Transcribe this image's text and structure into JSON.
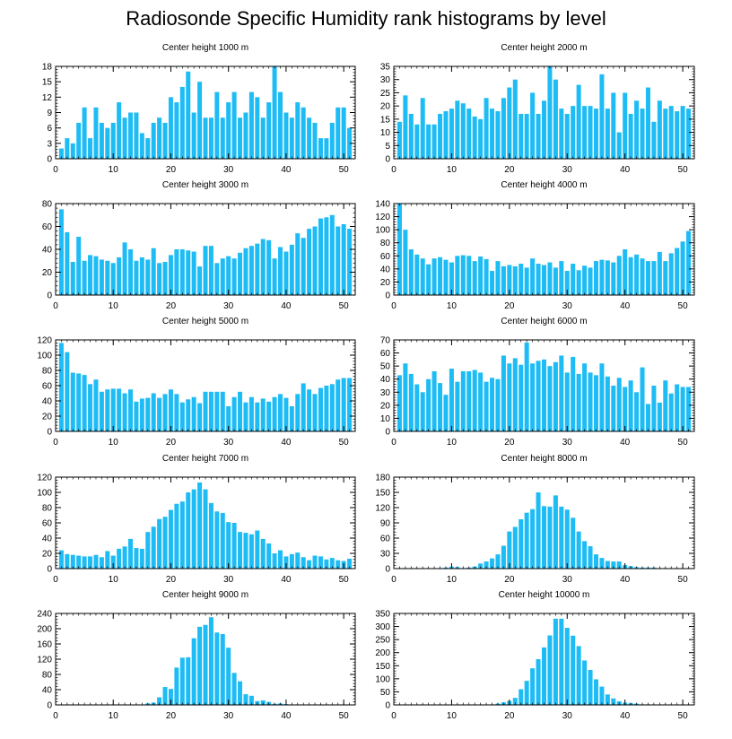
{
  "figure": {
    "title": "Radiosonde Specific Humidity rank histograms by level",
    "bar_color": "#1ebcf5",
    "axis_color": "#000000"
  },
  "chart_data": [
    {
      "type": "bar",
      "title": "Center height 1000 m",
      "xlim": [
        0,
        52
      ],
      "ylim": [
        0,
        18
      ],
      "xticks": [
        0,
        10,
        20,
        30,
        40,
        50
      ],
      "yticks": [
        0,
        3,
        6,
        9,
        12,
        15,
        18
      ],
      "values": [
        2,
        4,
        3,
        7,
        10,
        4,
        10,
        7,
        6,
        7,
        11,
        8,
        9,
        9,
        5,
        4,
        7,
        8,
        7,
        12,
        11,
        14,
        17,
        9,
        15,
        8,
        8,
        13,
        8,
        11,
        13,
        8,
        9,
        13,
        12,
        8,
        11,
        18,
        13,
        9,
        8,
        11,
        10,
        8,
        7,
        4,
        4,
        7,
        10,
        10,
        6
      ]
    },
    {
      "type": "bar",
      "title": "Center height 2000 m",
      "xlim": [
        0,
        52
      ],
      "ylim": [
        0,
        35
      ],
      "xticks": [
        0,
        10,
        20,
        30,
        40,
        50
      ],
      "yticks": [
        0,
        5,
        10,
        15,
        20,
        25,
        30,
        35
      ],
      "values": [
        14,
        24,
        17,
        13,
        23,
        13,
        13,
        17,
        18,
        19,
        22,
        21,
        19,
        16,
        15,
        23,
        19,
        18,
        23,
        27,
        30,
        17,
        17,
        25,
        17,
        22,
        35,
        30,
        19,
        17,
        20,
        28,
        20,
        20,
        19,
        32,
        19,
        25,
        10,
        25,
        17,
        22,
        19,
        27,
        14,
        22,
        19,
        20,
        18,
        20,
        19
      ]
    },
    {
      "type": "bar",
      "title": "Center height 3000 m",
      "xlim": [
        0,
        52
      ],
      "ylim": [
        0,
        80
      ],
      "xticks": [
        0,
        10,
        20,
        30,
        40,
        50
      ],
      "yticks": [
        0,
        20,
        40,
        60,
        80
      ],
      "values": [
        75,
        55,
        29,
        51,
        30,
        35,
        34,
        31,
        30,
        28,
        33,
        46,
        40,
        30,
        33,
        31,
        41,
        28,
        29,
        35,
        40,
        40,
        39,
        38,
        25,
        43,
        43,
        28,
        32,
        34,
        32,
        37,
        41,
        43,
        45,
        49,
        48,
        32,
        42,
        38,
        44,
        54,
        50,
        58,
        60,
        67,
        68,
        70,
        60,
        62,
        58
      ]
    },
    {
      "type": "bar",
      "title": "Center height 4000 m",
      "xlim": [
        0,
        52
      ],
      "ylim": [
        0,
        140
      ],
      "xticks": [
        0,
        10,
        20,
        30,
        40,
        50
      ],
      "yticks": [
        0,
        20,
        40,
        60,
        80,
        100,
        120,
        140
      ],
      "values": [
        140,
        100,
        70,
        62,
        56,
        47,
        56,
        58,
        54,
        50,
        60,
        61,
        60,
        52,
        59,
        55,
        37,
        52,
        44,
        46,
        44,
        48,
        42,
        56,
        48,
        46,
        50,
        42,
        52,
        37,
        48,
        38,
        45,
        42,
        52,
        54,
        53,
        50,
        60,
        70,
        58,
        62,
        56,
        52,
        52,
        66,
        52,
        64,
        72,
        82,
        98
      ]
    },
    {
      "type": "bar",
      "title": "Center height 5000 m",
      "xlim": [
        0,
        52
      ],
      "ylim": [
        0,
        120
      ],
      "xticks": [
        0,
        10,
        20,
        30,
        40,
        50
      ],
      "yticks": [
        0,
        20,
        40,
        60,
        80,
        100,
        120
      ],
      "values": [
        116,
        104,
        77,
        76,
        74,
        62,
        68,
        52,
        55,
        56,
        56,
        50,
        55,
        39,
        43,
        44,
        50,
        44,
        49,
        55,
        49,
        38,
        42,
        45,
        37,
        52,
        52,
        52,
        52,
        33,
        45,
        52,
        38,
        45,
        38,
        43,
        39,
        45,
        49,
        44,
        33,
        49,
        63,
        55,
        49,
        57,
        60,
        62,
        68,
        70,
        70
      ]
    },
    {
      "type": "bar",
      "title": "Center height 6000 m",
      "xlim": [
        0,
        52
      ],
      "ylim": [
        0,
        70
      ],
      "xticks": [
        0,
        10,
        20,
        30,
        40,
        50
      ],
      "yticks": [
        0,
        10,
        20,
        30,
        40,
        50,
        60,
        70
      ],
      "values": [
        43,
        52,
        44,
        36,
        30,
        40,
        46,
        37,
        28,
        48,
        38,
        46,
        46,
        47,
        45,
        38,
        41,
        40,
        58,
        52,
        56,
        51,
        68,
        52,
        54,
        55,
        50,
        53,
        58,
        45,
        57,
        44,
        52,
        45,
        43,
        52,
        42,
        35,
        41,
        34,
        39,
        30,
        49,
        21,
        35,
        22,
        39,
        29,
        36,
        34,
        34
      ]
    },
    {
      "type": "bar",
      "title": "Center height 7000 m",
      "xlim": [
        0,
        52
      ],
      "ylim": [
        0,
        120
      ],
      "xticks": [
        0,
        10,
        20,
        30,
        40,
        50
      ],
      "yticks": [
        0,
        20,
        40,
        60,
        80,
        100,
        120
      ],
      "values": [
        24,
        19,
        18,
        17,
        16,
        16,
        18,
        15,
        23,
        17,
        26,
        29,
        39,
        27,
        26,
        48,
        55,
        65,
        68,
        77,
        85,
        88,
        100,
        104,
        113,
        104,
        86,
        75,
        73,
        61,
        60,
        48,
        47,
        45,
        50,
        39,
        33,
        20,
        24,
        16,
        19,
        21,
        15,
        11,
        17,
        16,
        12,
        14,
        11,
        10,
        13
      ]
    },
    {
      "type": "bar",
      "title": "Center height 8000 m",
      "xlim": [
        0,
        52
      ],
      "ylim": [
        0,
        180
      ],
      "xticks": [
        0,
        10,
        20,
        30,
        40,
        50
      ],
      "yticks": [
        0,
        30,
        60,
        90,
        120,
        150,
        180
      ],
      "values": [
        1,
        1,
        1,
        1,
        0,
        1,
        1,
        1,
        2,
        4,
        3,
        1,
        2,
        4,
        10,
        14,
        20,
        28,
        45,
        73,
        82,
        97,
        110,
        117,
        150,
        123,
        122,
        144,
        122,
        116,
        100,
        73,
        54,
        44,
        28,
        21,
        15,
        14,
        14,
        7,
        5,
        3,
        2,
        2,
        2,
        1,
        1,
        1,
        1,
        0,
        1
      ]
    },
    {
      "type": "bar",
      "title": "Center height 9000 m",
      "xlim": [
        0,
        52
      ],
      "ylim": [
        0,
        240
      ],
      "xticks": [
        0,
        10,
        20,
        30,
        40,
        50
      ],
      "yticks": [
        0,
        40,
        80,
        120,
        160,
        200,
        240
      ],
      "values": [
        0,
        0,
        0,
        0,
        0,
        0,
        0,
        0,
        0,
        0,
        0,
        0,
        0,
        0,
        0,
        4,
        6,
        20,
        47,
        42,
        98,
        124,
        125,
        175,
        205,
        210,
        230,
        190,
        186,
        150,
        84,
        62,
        28,
        24,
        10,
        12,
        8,
        3,
        4,
        2,
        1,
        1,
        1,
        0,
        0,
        0,
        0,
        0,
        0,
        0,
        0
      ]
    },
    {
      "type": "bar",
      "title": "Center height 10000 m",
      "xlim": [
        0,
        52
      ],
      "ylim": [
        0,
        350
      ],
      "xticks": [
        0,
        10,
        20,
        30,
        40,
        50
      ],
      "yticks": [
        0,
        50,
        100,
        150,
        200,
        250,
        300,
        350
      ],
      "values": [
        0,
        0,
        0,
        0,
        0,
        0,
        0,
        0,
        0,
        0,
        0,
        0,
        0,
        0,
        0,
        0,
        2,
        5,
        10,
        15,
        27,
        60,
        92,
        140,
        175,
        220,
        266,
        330,
        330,
        295,
        265,
        225,
        170,
        134,
        98,
        70,
        40,
        25,
        14,
        9,
        7,
        5,
        2,
        2,
        1,
        0,
        0,
        0,
        0,
        0,
        0
      ]
    }
  ]
}
